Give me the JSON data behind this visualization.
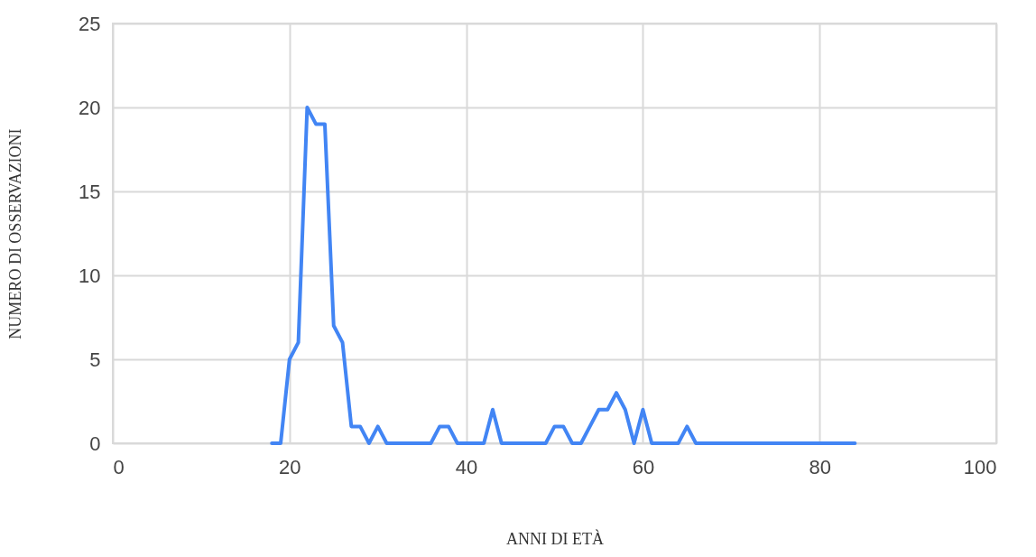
{
  "chart_data": {
    "type": "line",
    "xlabel": "ANNI DI ETÀ",
    "ylabel": "NUMERO DI OSSERVAZIONI",
    "x": [
      18,
      19,
      20,
      21,
      22,
      23,
      24,
      25,
      26,
      27,
      28,
      29,
      30,
      31,
      32,
      33,
      34,
      35,
      36,
      37,
      38,
      39,
      40,
      41,
      42,
      43,
      44,
      45,
      46,
      47,
      48,
      49,
      50,
      51,
      52,
      53,
      54,
      55,
      56,
      57,
      58,
      59,
      60,
      61,
      62,
      63,
      64,
      65,
      66,
      67,
      68,
      69,
      70,
      71,
      72,
      73,
      74,
      75,
      76,
      77,
      78,
      79,
      80,
      81,
      82,
      83,
      84
    ],
    "series": [
      {
        "color": "#4285f4",
        "values": [
          0,
          0,
          5,
          6,
          20,
          19,
          19,
          7,
          6,
          1,
          1,
          0,
          1,
          0,
          0,
          0,
          0,
          0,
          0,
          1,
          1,
          0,
          0,
          0,
          0,
          2,
          0,
          0,
          0,
          0,
          0,
          0,
          1,
          1,
          0,
          0,
          1,
          2,
          2,
          3,
          2,
          0,
          2,
          0,
          0,
          0,
          0,
          1,
          0,
          0,
          0,
          0,
          0,
          0,
          0,
          0,
          0,
          0,
          0,
          0,
          0,
          0,
          0,
          0,
          0,
          0,
          0
        ]
      }
    ],
    "xlim": [
      0,
      100
    ],
    "xticks": [
      0,
      20,
      40,
      60,
      80,
      100
    ],
    "ylim": [
      0,
      25
    ],
    "yticks": [
      0,
      5,
      10,
      15,
      20,
      25
    ],
    "grid": true,
    "marker": "none",
    "line_style": "solid"
  }
}
